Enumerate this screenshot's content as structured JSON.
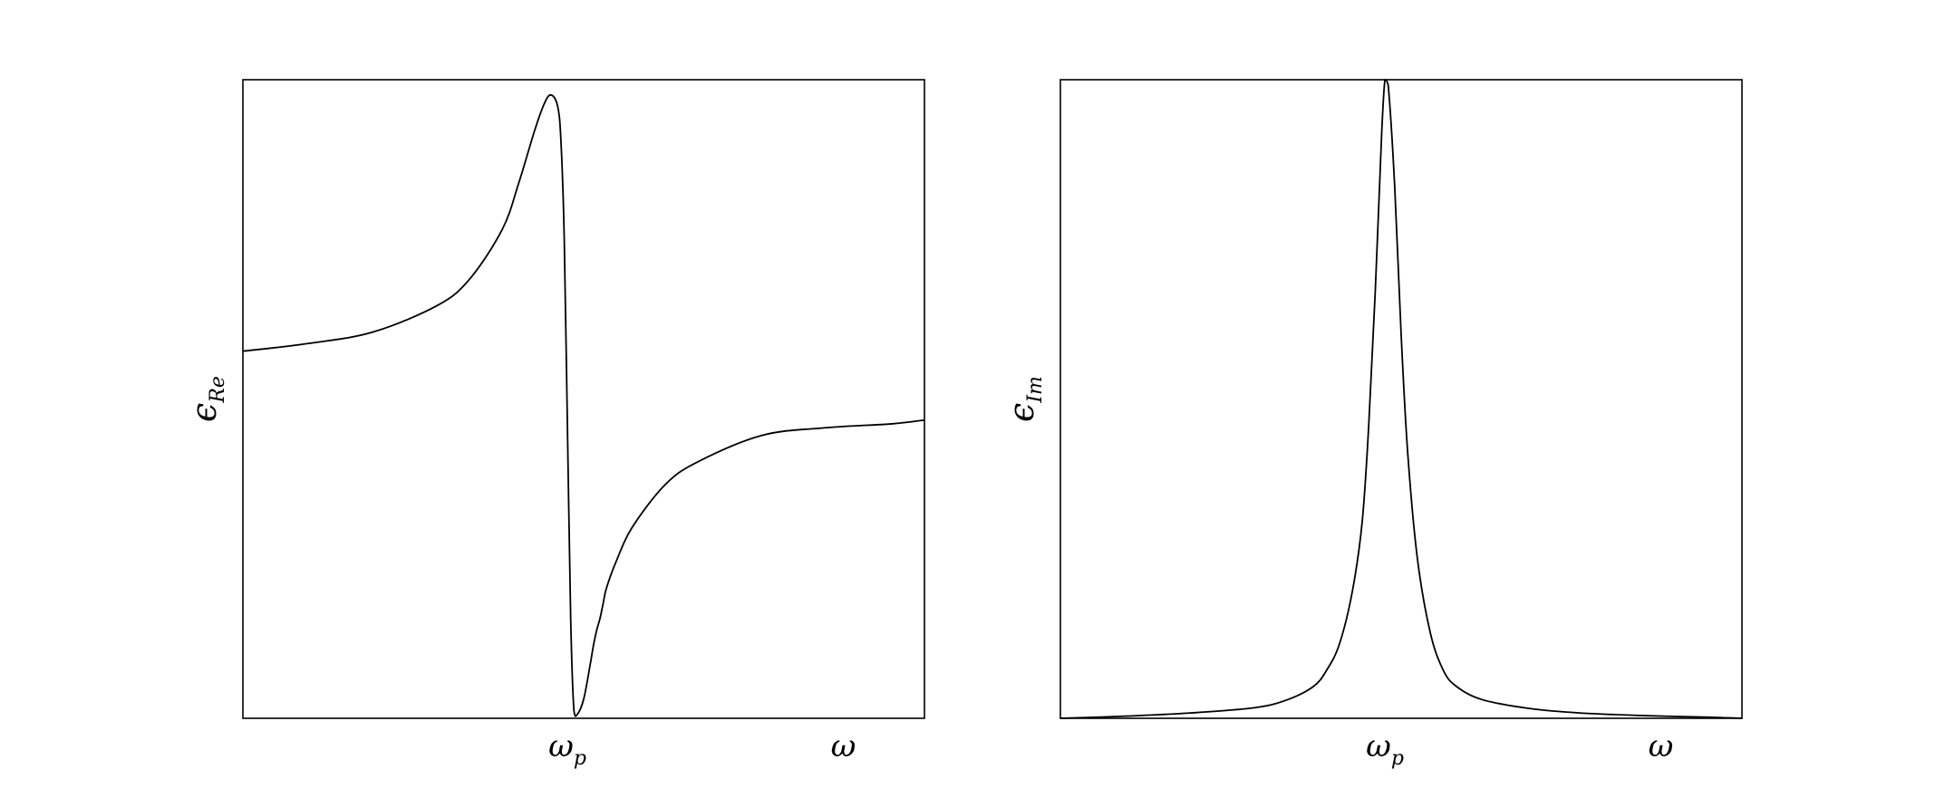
{
  "chart_data": [
    {
      "type": "line",
      "title": "",
      "ylabel": "ϵ",
      "ylabel_subscript": "Re",
      "xticks": [
        {
          "x": 1.0,
          "label": "ω",
          "subscript": "p"
        },
        {
          "x": 1.85,
          "label": "ω",
          "subscript": ""
        }
      ],
      "xlim": [
        0,
        2.1
      ],
      "ylim": [
        -0.56,
        1.11
      ],
      "grid": false,
      "legend": "none",
      "series": [
        {
          "color": "#000000",
          "x": [
            0.0,
            0.2,
            0.4,
            0.6,
            0.7,
            0.8,
            0.85,
            0.9,
            0.93,
            0.95,
            0.97,
            0.98,
            0.99,
            1.0,
            1.01,
            1.02,
            1.03,
            1.05,
            1.07,
            1.08,
            1.09,
            1.1,
            1.11,
            1.12,
            1.15,
            1.2,
            1.3,
            1.4,
            1.6,
            1.8,
            2.0,
            2.1
          ],
          "y": [
            0.4,
            0.42,
            0.45,
            0.52,
            0.59,
            0.72,
            0.84,
            0.98,
            1.05,
            1.07,
            1.04,
            0.95,
            0.7,
            0.2,
            -0.3,
            -0.54,
            -0.55,
            -0.51,
            -0.42,
            -0.37,
            -0.33,
            -0.3,
            -0.26,
            -0.22,
            -0.15,
            -0.06,
            0.05,
            0.11,
            0.18,
            0.2,
            0.21,
            0.22
          ]
        }
      ]
    },
    {
      "type": "line",
      "title": "",
      "ylabel": "ϵ",
      "ylabel_subscript": "Im",
      "xticks": [
        {
          "x": 1.0,
          "label": "ω",
          "subscript": "p"
        },
        {
          "x": 1.85,
          "label": "ω",
          "subscript": ""
        }
      ],
      "xlim": [
        0,
        2.1
      ],
      "ylim": [
        0,
        1.2
      ],
      "grid": false,
      "legend": "none",
      "series": [
        {
          "color": "#000000",
          "x": [
            0.0,
            0.2,
            0.4,
            0.6,
            0.7,
            0.78,
            0.82,
            0.86,
            0.9,
            0.93,
            0.95,
            0.97,
            0.99,
            1.0,
            1.01,
            1.03,
            1.05,
            1.07,
            1.1,
            1.14,
            1.18,
            1.22,
            1.3,
            1.45,
            1.6,
            1.8,
            2.0,
            2.1
          ],
          "y": [
            0.0,
            0.004,
            0.01,
            0.02,
            0.035,
            0.06,
            0.09,
            0.14,
            0.24,
            0.37,
            0.55,
            0.8,
            1.1,
            1.2,
            1.19,
            1.0,
            0.72,
            0.5,
            0.3,
            0.16,
            0.09,
            0.06,
            0.035,
            0.018,
            0.01,
            0.005,
            0.002,
            0.0
          ]
        }
      ]
    }
  ]
}
